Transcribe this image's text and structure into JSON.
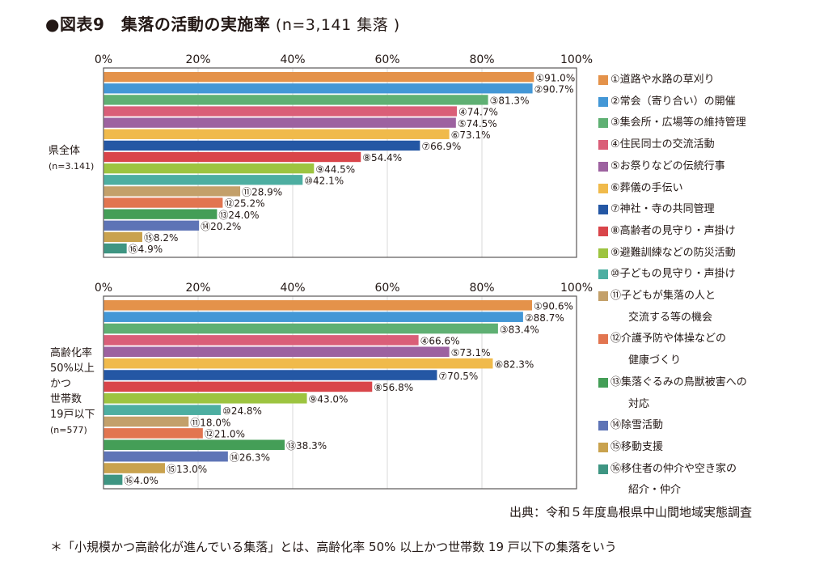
{
  "title": {
    "main": "●図表9　集落の活動の実施率",
    "sub": " (n=3,141 集落 )"
  },
  "source": "出典：令和５年度島根県中山間地域実態調査",
  "note": "＊「小規模かつ高齢化が進んでいる集落」とは、高齢化率 50% 以上かつ世帯数 19 戸以下の集落をいう",
  "legend": [
    {
      "num": "①",
      "label": "道路や水路の草刈り",
      "color": "#E4924A"
    },
    {
      "num": "②",
      "label": "常会（寄り合い）の開催",
      "color": "#4397D6"
    },
    {
      "num": "③",
      "label": "集会所・広場等の維持管理",
      "color": "#5FB073"
    },
    {
      "num": "④",
      "label": "住民同士の交流活動",
      "color": "#DA5E78"
    },
    {
      "num": "⑤",
      "label": "お祭りなどの伝統行事",
      "color": "#9D62A0"
    },
    {
      "num": "⑥",
      "label": "葬儀の手伝い",
      "color": "#F0BA4B"
    },
    {
      "num": "⑦",
      "label": "神社・寺の共同管理",
      "color": "#2457A4"
    },
    {
      "num": "⑧",
      "label": "高齢者の見守り・声掛け",
      "color": "#D9454A"
    },
    {
      "num": "⑨",
      "label": "避難訓練などの防災活動",
      "color": "#9DC440"
    },
    {
      "num": "⑩",
      "label": "子どもの見守り・声掛け",
      "color": "#4DAEA1"
    },
    {
      "num": "⑪",
      "label": "子どもが集落の人と",
      "label2": "交流する等の機会",
      "color": "#C3A06A"
    },
    {
      "num": "⑫",
      "label": "介護予防や体操などの",
      "label2": "健康づくり",
      "color": "#E27550"
    },
    {
      "num": "⑬",
      "label": "集落ぐるみの鳥獣被害への",
      "label2": "対応",
      "color": "#449E57"
    },
    {
      "num": "⑭",
      "label": "除雪活動",
      "color": "#5E74B6"
    },
    {
      "num": "⑮",
      "label": "移動支援",
      "color": "#C9A24E"
    },
    {
      "num": "⑯",
      "label": "移住者の仲介や空き家の",
      "label2": "紹介・仲介",
      "color": "#3E9582"
    }
  ],
  "chart_data": [
    {
      "type": "bar",
      "orientation": "horizontal",
      "title": "",
      "group_label": [
        "県全体",
        "(n=3.141)"
      ],
      "categories": [
        "①",
        "②",
        "③",
        "④",
        "⑤",
        "⑥",
        "⑦",
        "⑧",
        "⑨",
        "⑩",
        "⑪",
        "⑫",
        "⑬",
        "⑭",
        "⑮",
        "⑯"
      ],
      "values": [
        91.0,
        90.7,
        81.3,
        74.7,
        74.5,
        73.1,
        66.9,
        54.4,
        44.5,
        42.1,
        28.9,
        25.2,
        24.0,
        20.2,
        8.2,
        4.9
      ],
      "value_labels": [
        "91.0%",
        "90.7%",
        "81.3%",
        "74.7%",
        "74.5%",
        "73.1%",
        "66.9%",
        "54.4%",
        "44.5%",
        "42.1%",
        "28.9%",
        "25.2%",
        "24.0%",
        "20.2%",
        "8.2%",
        "4.9%"
      ],
      "xlim": [
        0,
        100
      ],
      "xticks": [
        "0%",
        "20%",
        "40%",
        "60%",
        "80%",
        "100%"
      ],
      "grid": true,
      "xlabel": "",
      "ylabel": "",
      "legend_position": "right"
    },
    {
      "type": "bar",
      "orientation": "horizontal",
      "title": "",
      "group_label": [
        "高齢化率",
        "50%以上",
        "かつ",
        "世帯数",
        "19戸以下",
        "(n=577)"
      ],
      "categories": [
        "①",
        "②",
        "③",
        "④",
        "⑤",
        "⑥",
        "⑦",
        "⑧",
        "⑨",
        "⑩",
        "⑪",
        "⑫",
        "⑬",
        "⑭",
        "⑮",
        "⑯"
      ],
      "values": [
        90.6,
        88.7,
        83.4,
        66.6,
        73.1,
        82.3,
        70.5,
        56.8,
        43.0,
        24.8,
        18.0,
        21.0,
        38.3,
        26.3,
        13.0,
        4.0
      ],
      "value_labels": [
        "90.6%",
        "88.7%",
        "83.4%",
        "66.6%",
        "73.1%",
        "82.3%",
        "70.5%",
        "56.8%",
        "43.0%",
        "24.8%",
        "18.0%",
        "21.0%",
        "38.3%",
        "26.3%",
        "13.0%",
        "4.0%"
      ],
      "xlim": [
        0,
        100
      ],
      "xticks": [
        "0%",
        "20%",
        "40%",
        "60%",
        "80%",
        "100%"
      ],
      "grid": true,
      "xlabel": "",
      "ylabel": "",
      "legend_position": "right"
    }
  ]
}
